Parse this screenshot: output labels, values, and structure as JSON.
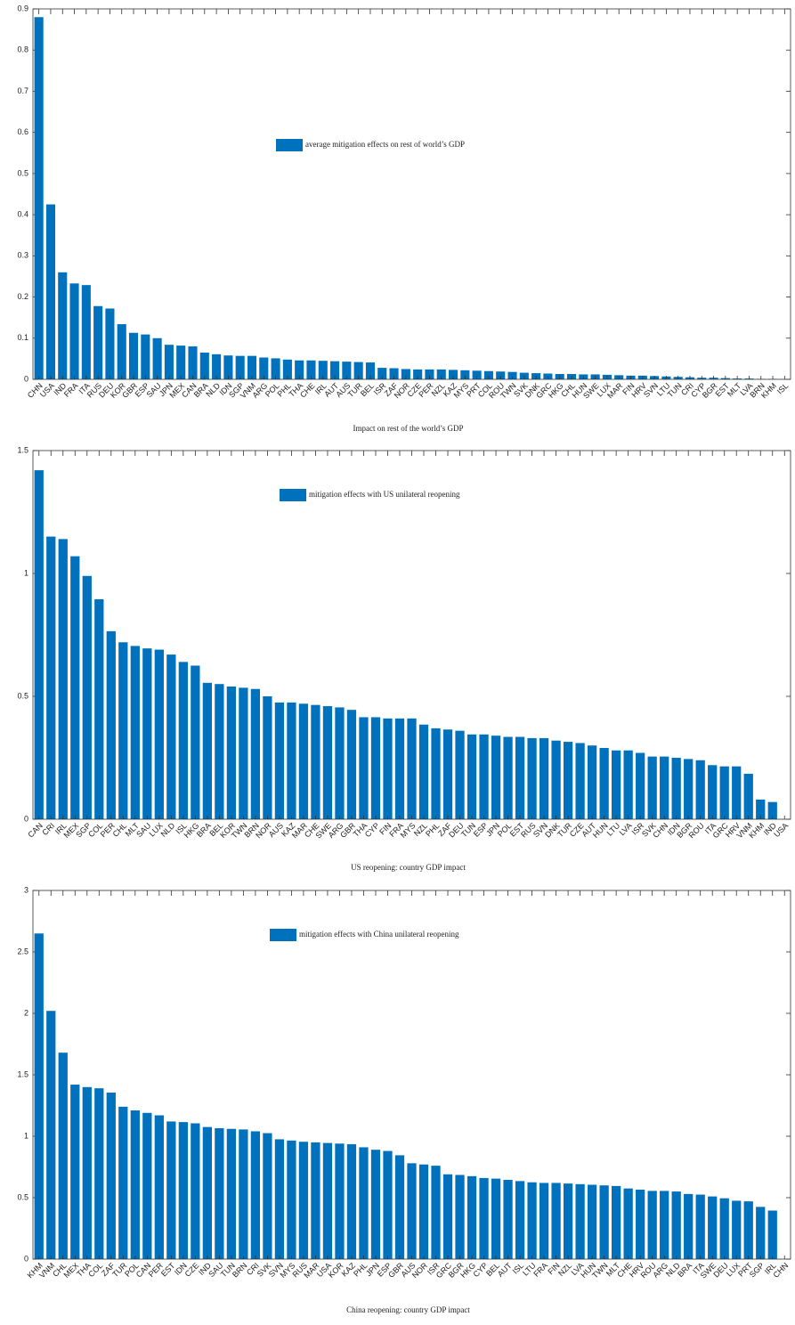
{
  "chart_data": [
    {
      "type": "bar",
      "title": "Impact on rest of the world’s GDP",
      "color": "#0072bd",
      "legend_label": "average mitigation effects on rest of world’s GDP",
      "categories": [
        "CHN",
        "USA",
        "IND",
        "FRA",
        "ITA",
        "RUS",
        "DEU",
        "KOR",
        "GBR",
        "ESP",
        "SAU",
        "JPN",
        "MEX",
        "CAN",
        "BRA",
        "NLD",
        "IDN",
        "SGP",
        "VNM",
        "ARG",
        "POL",
        "PHL",
        "THA",
        "CHE",
        "IRL",
        "AUT",
        "AUS",
        "TUR",
        "BEL",
        "ISR",
        "ZAF",
        "NOR",
        "CZE",
        "PER",
        "NZL",
        "KAZ",
        "MYS",
        "PRT",
        "COL",
        "ROU",
        "TWN",
        "SVK",
        "DNK",
        "GRC",
        "HKG",
        "CHL",
        "HUN",
        "SWE",
        "LUX",
        "MAR",
        "FIN",
        "HRV",
        "SVN",
        "LTU",
        "TUN",
        "CRI",
        "CYP",
        "BGR",
        "EST",
        "MLT",
        "LVA",
        "BRN",
        "KHM",
        "ISL"
      ],
      "values": [
        0.88,
        0.425,
        0.26,
        0.233,
        0.229,
        0.178,
        0.172,
        0.134,
        0.113,
        0.109,
        0.1,
        0.084,
        0.082,
        0.08,
        0.065,
        0.061,
        0.058,
        0.057,
        0.057,
        0.053,
        0.051,
        0.048,
        0.046,
        0.046,
        0.045,
        0.044,
        0.043,
        0.042,
        0.041,
        0.028,
        0.027,
        0.025,
        0.024,
        0.024,
        0.024,
        0.023,
        0.022,
        0.021,
        0.02,
        0.019,
        0.018,
        0.016,
        0.015,
        0.014,
        0.013,
        0.013,
        0.012,
        0.012,
        0.011,
        0.01,
        0.009,
        0.009,
        0.008,
        0.007,
        0.006,
        0.005,
        0.004,
        0.004,
        0.003,
        0.002,
        0.002,
        0.001,
        0.001,
        0.0005
      ],
      "ylim": [
        0,
        0.9
      ],
      "yticks": [
        0,
        0.1,
        0.2,
        0.3,
        0.4,
        0.5,
        0.6,
        0.7,
        0.8,
        0.9
      ]
    },
    {
      "type": "bar",
      "title": "US reopening: country GDP impact",
      "color": "#0072bd",
      "legend_label": "mitigation effects with US unilateral reopening",
      "categories": [
        "CAN",
        "CRI",
        "IRL",
        "MEX",
        "SGP",
        "COL",
        "PER",
        "CHL",
        "MLT",
        "SAU",
        "LUX",
        "NLD",
        "ISL",
        "HKG",
        "BRA",
        "BEL",
        "KOR",
        "TWN",
        "BRN",
        "NOR",
        "AUS",
        "KAZ",
        "MAR",
        "CHE",
        "SWE",
        "ARG",
        "GBR",
        "THA",
        "CYP",
        "FIN",
        "FRA",
        "MYS",
        "NZL",
        "PHL",
        "ZAF",
        "DEU",
        "TUN",
        "ESP",
        "JPN",
        "POL",
        "EST",
        "RUS",
        "SVN",
        "DNK",
        "TUR",
        "CZE",
        "AUT",
        "HUN",
        "LTU",
        "LVA",
        "ISR",
        "SVK",
        "CHN",
        "IDN",
        "BGR",
        "ROU",
        "ITA",
        "GRC",
        "HRV",
        "VNM",
        "KHM",
        "IND",
        "USA"
      ],
      "values": [
        1.42,
        1.15,
        1.14,
        1.07,
        0.99,
        0.895,
        0.765,
        0.72,
        0.705,
        0.695,
        0.69,
        0.67,
        0.64,
        0.625,
        0.555,
        0.55,
        0.54,
        0.535,
        0.53,
        0.5,
        0.475,
        0.475,
        0.47,
        0.465,
        0.46,
        0.455,
        0.445,
        0.415,
        0.415,
        0.41,
        0.41,
        0.41,
        0.385,
        0.37,
        0.365,
        0.36,
        0.345,
        0.345,
        0.34,
        0.335,
        0.335,
        0.33,
        0.33,
        0.32,
        0.315,
        0.31,
        0.3,
        0.29,
        0.28,
        0.28,
        0.27,
        0.255,
        0.255,
        0.25,
        0.245,
        0.24,
        0.22,
        0.215,
        0.215,
        0.185,
        0.08,
        0.07,
        0
      ],
      "ylim": [
        0,
        1.5
      ],
      "yticks": [
        0,
        0.5,
        1,
        1.5
      ]
    },
    {
      "type": "bar",
      "title": "China reopening: country GDP impact",
      "color": "#0072bd",
      "legend_label": "mitigation effects with China unilateral reopening",
      "categories": [
        "KHM",
        "VNM",
        "CHL",
        "MEX",
        "THA",
        "COL",
        "ZAF",
        "TUR",
        "POL",
        "CAN",
        "PER",
        "EST",
        "IDN",
        "CZE",
        "IND",
        "SAU",
        "TUN",
        "BRN",
        "CRI",
        "SVK",
        "SVN",
        "MYS",
        "RUS",
        "MAR",
        "USA",
        "KOR",
        "KAZ",
        "PHL",
        "JPN",
        "ESP",
        "GBR",
        "AUS",
        "NOR",
        "ISR",
        "GRC",
        "BGR",
        "HKG",
        "CYP",
        "BEL",
        "AUT",
        "ISL",
        "LTU",
        "FRA",
        "FIN",
        "NZL",
        "LVA",
        "HUN",
        "TWN",
        "MLT",
        "CHE",
        "HRV",
        "ROU",
        "ARG",
        "NLD",
        "BRA",
        "ITA",
        "SWE",
        "DEU",
        "LUX",
        "PRT",
        "SGP",
        "IRL",
        "CHN"
      ],
      "values": [
        2.65,
        2.02,
        1.68,
        1.42,
        1.4,
        1.39,
        1.355,
        1.24,
        1.21,
        1.19,
        1.17,
        1.12,
        1.115,
        1.105,
        1.075,
        1.065,
        1.06,
        1.055,
        1.04,
        1.025,
        0.975,
        0.965,
        0.955,
        0.95,
        0.945,
        0.94,
        0.935,
        0.91,
        0.89,
        0.88,
        0.845,
        0.78,
        0.77,
        0.76,
        0.69,
        0.685,
        0.675,
        0.66,
        0.655,
        0.645,
        0.635,
        0.625,
        0.62,
        0.62,
        0.615,
        0.61,
        0.605,
        0.6,
        0.595,
        0.575,
        0.565,
        0.555,
        0.555,
        0.55,
        0.53,
        0.525,
        0.51,
        0.495,
        0.475,
        0.47,
        0.425,
        0.395,
        0
      ],
      "ylim": [
        0,
        3
      ],
      "yticks": [
        0,
        0.5,
        1,
        1.5,
        2,
        2.5,
        3
      ]
    }
  ]
}
